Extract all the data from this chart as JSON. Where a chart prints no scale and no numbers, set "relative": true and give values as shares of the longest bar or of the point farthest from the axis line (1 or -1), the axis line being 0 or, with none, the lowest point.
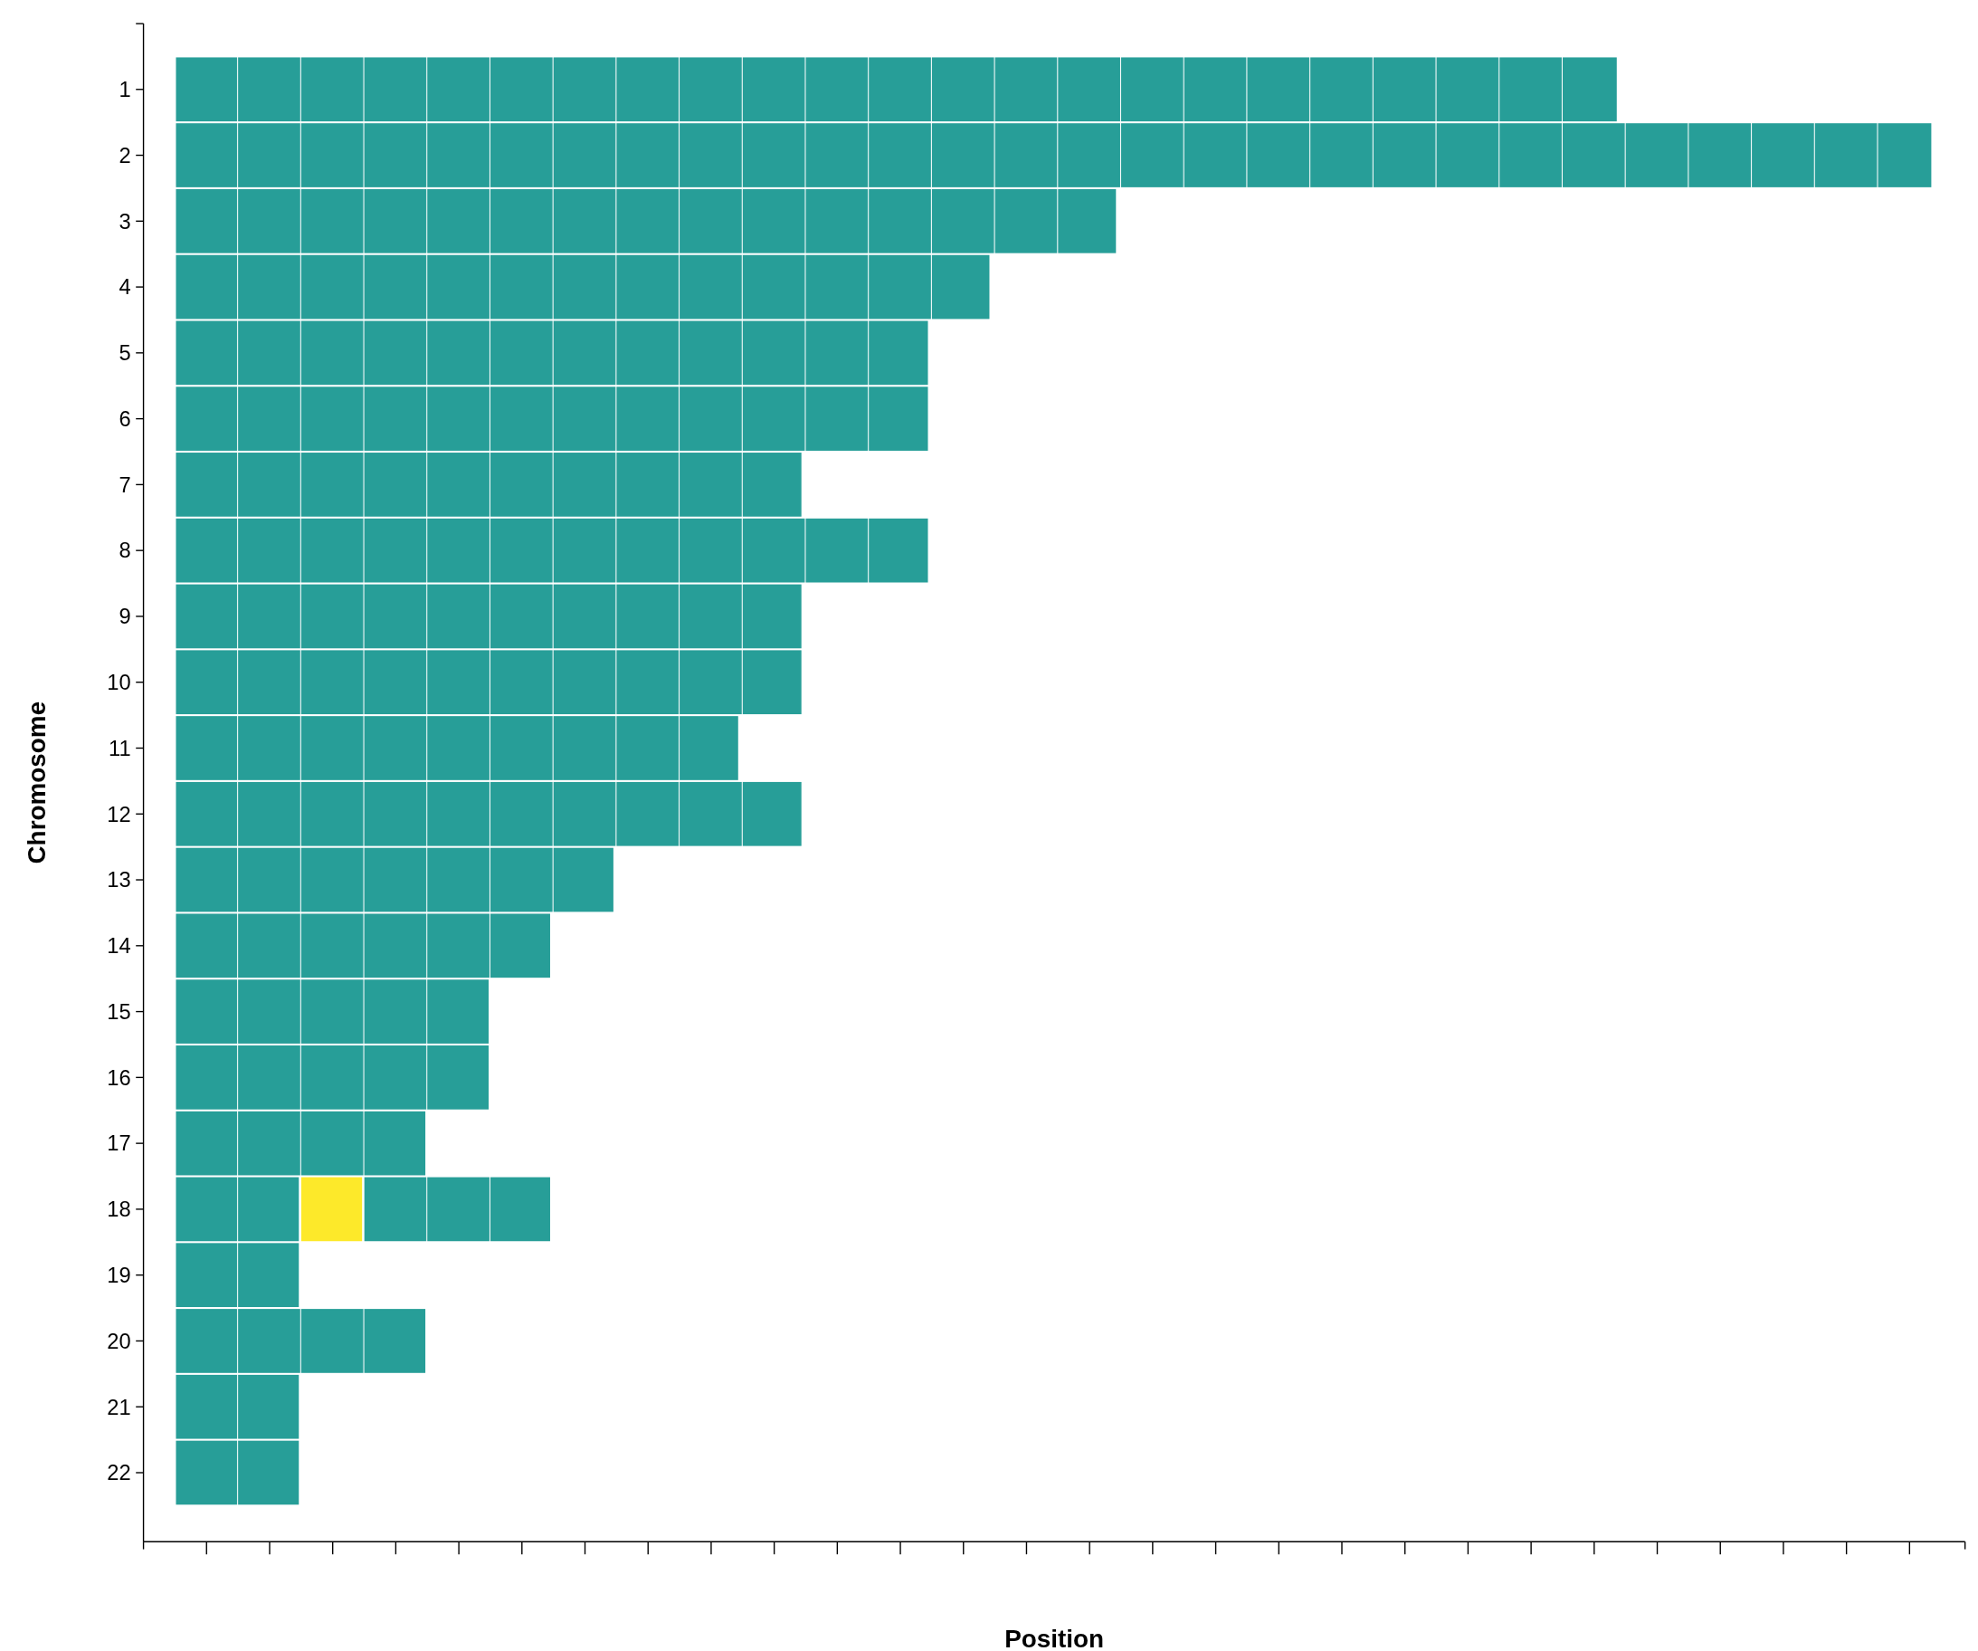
{
  "chart_data": {
    "type": "bar",
    "orientation": "horizontal",
    "stacked": true,
    "relative": true,
    "xlabel": "Position",
    "ylabel": "Chromosome",
    "categories": [
      "1",
      "2",
      "3",
      "4",
      "5",
      "6",
      "7",
      "8",
      "9",
      "10",
      "11",
      "12",
      "13",
      "14",
      "15",
      "16",
      "17",
      "18",
      "19",
      "20",
      "21",
      "22"
    ],
    "series": [
      {
        "color": "#279e98",
        "values": [
          0.821,
          1,
          0.536,
          0.464,
          0.429,
          0.429,
          0.357,
          0.429,
          0.357,
          0.357,
          0.321,
          0.357,
          0.25,
          0.214,
          0.179,
          0.179,
          0.143,
          0.071,
          0.071,
          0.143,
          0.071,
          0.071
        ]
      },
      {
        "color": "#fde92a",
        "values": [
          null,
          null,
          null,
          null,
          null,
          null,
          null,
          null,
          null,
          null,
          null,
          null,
          null,
          null,
          null,
          null,
          null,
          0.036,
          null,
          null,
          null,
          null
        ]
      },
      {
        "color": "#279e98",
        "values": [
          null,
          null,
          null,
          null,
          null,
          null,
          null,
          null,
          null,
          null,
          null,
          null,
          null,
          null,
          null,
          null,
          null,
          0.107,
          null,
          null,
          null,
          null
        ]
      }
    ]
  }
}
